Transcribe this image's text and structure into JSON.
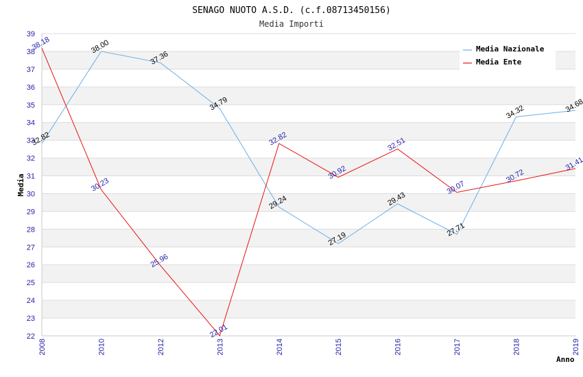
{
  "chart_data": {
    "type": "line",
    "title": "SENAGO NUOTO A.S.D. (c.f.08713450156)",
    "subtitle": "Media Importi",
    "xlabel": "Anno",
    "ylabel": "Media",
    "categories": [
      "2008",
      "2010",
      "2012",
      "2013",
      "2014",
      "2015",
      "2016",
      "2017",
      "2018",
      "2019"
    ],
    "ylim": [
      22,
      39
    ],
    "yticks": [
      22,
      23,
      24,
      25,
      26,
      27,
      28,
      29,
      30,
      31,
      32,
      33,
      34,
      35,
      36,
      37,
      38,
      39
    ],
    "grid": true,
    "legend_position": "top-right",
    "series": [
      {
        "name": "Media Nazionale",
        "color": "#6aaee8",
        "values": [
          32.82,
          38.0,
          37.36,
          34.79,
          29.24,
          27.19,
          29.43,
          27.71,
          34.32,
          34.68
        ],
        "labels": [
          "32.82",
          "38.00",
          "37.36",
          "34.79",
          "29.24",
          "27.19",
          "29.43",
          "27.71",
          "34.32",
          "34.68"
        ]
      },
      {
        "name": "Media Ente",
        "color": "#e81010",
        "values": [
          38.18,
          30.23,
          25.96,
          22.01,
          32.82,
          30.92,
          32.51,
          30.07,
          30.72,
          31.41
        ],
        "labels": [
          "38.18",
          "30.23",
          "25.96",
          "22.01",
          "32.82",
          "30.92",
          "32.51",
          "30.07",
          "30.72",
          "31.41"
        ]
      }
    ]
  }
}
